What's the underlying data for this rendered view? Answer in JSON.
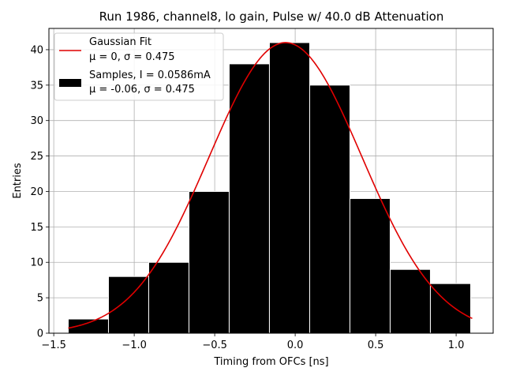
{
  "chart_data": {
    "type": "bar",
    "title": "Run 1986, channel8, lo gain, Pulse w/ 40.0 dB Attenuation",
    "xlabel": "Timing from OFCs [ns]",
    "ylabel": "Entries",
    "xlim": [
      -1.53,
      1.23
    ],
    "ylim": [
      0,
      43
    ],
    "xticks": [
      -1.5,
      -1.0,
      -0.5,
      0.0,
      0.5,
      1.0
    ],
    "xtick_labels": [
      "−1.5",
      "−1.0",
      "−0.5",
      "0.0",
      "0.5",
      "1.0"
    ],
    "yticks": [
      0,
      5,
      10,
      15,
      20,
      25,
      30,
      35,
      40
    ],
    "ytick_labels": [
      "0",
      "5",
      "10",
      "15",
      "20",
      "25",
      "30",
      "35",
      "40"
    ],
    "grid": true,
    "histogram": {
      "name": "Samples, I = 0.0586mA",
      "stats": "μ = -0.06, σ = 0.475",
      "bin_edges": [
        -1.41,
        -1.16,
        -0.91,
        -0.66,
        -0.41,
        -0.16,
        0.09,
        0.34,
        0.59,
        0.84,
        1.09
      ],
      "values": [
        2,
        8,
        10,
        20,
        38,
        41,
        35,
        19,
        9,
        7
      ],
      "color": "#000000",
      "edgecolor": "#ffffff"
    },
    "fit": {
      "name": "Gaussian Fit",
      "stats": "μ = 0, σ = 0.475",
      "mu": -0.06,
      "sigma": 0.475,
      "amplitude": 41,
      "x_range": [
        -1.41,
        1.1
      ],
      "color": "#e00000"
    },
    "legend": {
      "placement": "top-left",
      "entries": [
        {
          "line1": "Gaussian Fit",
          "line2": "μ = 0, σ = 0.475",
          "marker": "line"
        },
        {
          "line1": "Samples, I = 0.0586mA",
          "line2": "μ = -0.06, σ = 0.475",
          "marker": "box"
        }
      ]
    }
  }
}
